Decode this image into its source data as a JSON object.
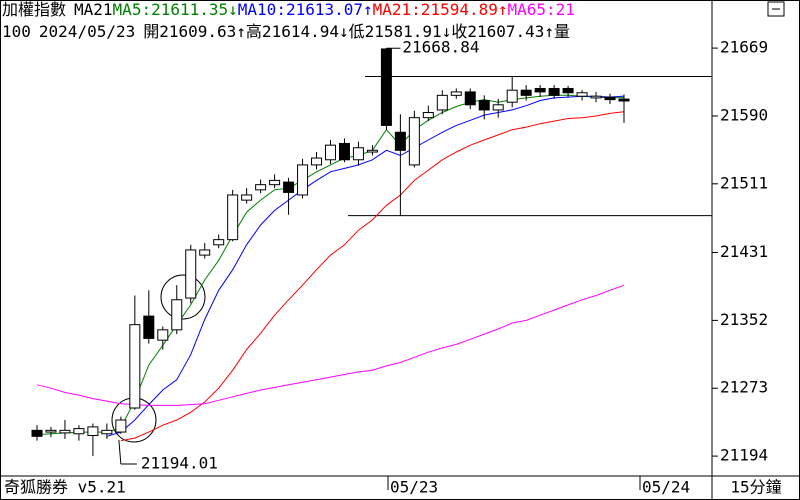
{
  "chart_data": {
    "type": "candlestick",
    "header": [
      [
        {
          "text": "加權指數",
          "color": "#000000"
        },
        {
          "text": "MA21",
          "color": "#000000"
        },
        {
          "text": "MA5:21611.35↓",
          "color": "#008000"
        },
        {
          "text": "MA10:21613.07↑",
          "color": "#0000ff"
        },
        {
          "text": "MA21:21594.89↑",
          "color": "#ff0000"
        },
        {
          "text": "MA65:21",
          "color": "#ff00ff"
        }
      ],
      [
        {
          "text": "100",
          "color": "#000000"
        },
        {
          "text": "2024/05/23",
          "color": "#000000"
        },
        {
          "text": "開21609.63↑高21614.94↓低21581.91↓收21607.43↑量",
          "color": "#000000"
        }
      ]
    ],
    "footer": {
      "left": "奇狐勝券 v5.21",
      "right": "15分鐘",
      "x_labels": [
        "05/23",
        "05/24"
      ]
    },
    "annotations": [
      "21668.84",
      "21194.01"
    ],
    "ylim": [
      21172,
      21725
    ],
    "yticks": [
      21194,
      21273,
      21352,
      21431,
      21511,
      21590,
      21669
    ],
    "up_color": "#ffffff",
    "down_color": "#000000",
    "candles": {
      "open": [
        21224,
        21222,
        21221,
        21220,
        21218,
        21220,
        21222,
        21250,
        21357,
        21329,
        21341,
        21378,
        21428,
        21440,
        21446,
        21492,
        21504,
        21510,
        21513,
        21498,
        21533,
        21539,
        21558,
        21539,
        21548,
        21668,
        21571,
        21533,
        21588,
        21597,
        21614,
        21618,
        21608,
        21597,
        21606,
        21620,
        21622,
        21622,
        21622,
        21613,
        21611,
        21612,
        21609.63
      ],
      "high": [
        21230,
        21228,
        21236,
        21230,
        21232,
        21232,
        21240,
        21381,
        21387,
        21345,
        21393,
        21440,
        21442,
        21452,
        21504,
        21506,
        21516,
        21522,
        21518,
        21540,
        21548,
        21562,
        21564,
        21560,
        21556,
        21668.84,
        21592,
        21596,
        21602,
        21620,
        21622,
        21622,
        21614,
        21610,
        21636,
        21626,
        21626,
        21626,
        21625,
        21620,
        21618,
        21616,
        21614.94
      ],
      "low": [
        21212,
        21216,
        21214,
        21212,
        21194.01,
        21214,
        21220,
        21248,
        21325,
        21318,
        21336,
        21372,
        21424,
        21436,
        21444,
        21488,
        21500,
        21506,
        21475,
        21494,
        21528,
        21534,
        21536,
        21532,
        21544,
        21574,
        21474,
        21530,
        21584,
        21592,
        21610,
        21598,
        21586,
        21588,
        21600,
        21608,
        21612,
        21610,
        21612,
        21608,
        21606,
        21604,
        21581.91
      ],
      "close": [
        21217,
        21224,
        21224,
        21226,
        21228,
        21224,
        21236,
        21347,
        21331,
        21341,
        21376,
        21434,
        21434,
        21446,
        21498,
        21498,
        21510,
        21515,
        21501,
        21533,
        21541,
        21556,
        21539,
        21553,
        21550,
        21579,
        21550,
        21588,
        21594,
        21614,
        21618,
        21603,
        21597,
        21603,
        21620,
        21614,
        21618,
        21614,
        21617,
        21617,
        21613,
        21609,
        21607.43
      ]
    },
    "series": [
      {
        "color": "#008000",
        "values": [
          21219,
          21220,
          21221,
          21222,
          21222,
          21222,
          21227,
          21259,
          21300,
          21323,
          21347,
          21370,
          21399,
          21422,
          21451,
          21478,
          21492,
          21504,
          21506,
          21515,
          21525,
          21533,
          21541,
          21544,
          21550,
          21574,
          21556,
          21574,
          21585,
          21594,
          21601,
          21606,
          21609,
          21606,
          21609,
          21611,
          21613,
          21614,
          21614,
          21613,
          21612,
          21611,
          21611.35
        ]
      },
      {
        "color": "#0000ff",
        "values": [
          null,
          null,
          null,
          null,
          null,
          21217,
          21222,
          21236,
          21254,
          21271,
          21283,
          21312,
          21353,
          21387,
          21411,
          21440,
          21463,
          21480,
          21492,
          21504,
          21515,
          21525,
          21529,
          21533,
          21539,
          21550,
          21544,
          21553,
          21562,
          21571,
          21579,
          21585,
          21591,
          21594,
          21597,
          21602,
          21608,
          21611,
          21612,
          21613,
          21613,
          21612,
          21613.07
        ]
      },
      {
        "color": "#ff0000",
        "values": [
          null,
          null,
          null,
          null,
          null,
          null,
          21212,
          21215,
          21222,
          21230,
          21236,
          21245,
          21257,
          21273,
          21294,
          21318,
          21337,
          21358,
          21376,
          21393,
          21411,
          21428,
          21440,
          21457,
          21469,
          21486,
          21498,
          21515,
          21527,
          21539,
          21548,
          21556,
          21562,
          21568,
          21574,
          21577,
          21581,
          21584,
          21587,
          21588,
          21590,
          21593,
          21594.89
        ]
      },
      {
        "color": "#ff00ff",
        "values": [
          21277,
          21273,
          21268,
          21265,
          21261,
          21258,
          21255,
          21254,
          21253,
          21253,
          21253,
          21254,
          21255,
          21259,
          21263,
          21267,
          21271,
          21274,
          21277,
          21280,
          21283,
          21286,
          21289,
          21292,
          21294,
          21299,
          21303,
          21309,
          21315,
          21320,
          21324,
          21330,
          21336,
          21342,
          21349,
          21352,
          21358,
          21364,
          21370,
          21376,
          21381,
          21387,
          21393
        ]
      }
    ]
  }
}
